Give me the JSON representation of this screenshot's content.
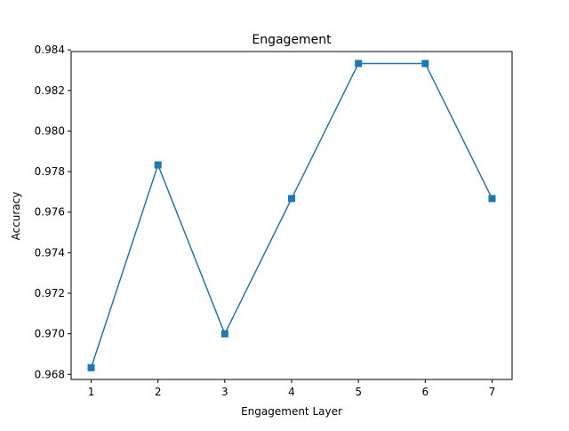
{
  "chart_data": {
    "type": "line",
    "title": "Engagement",
    "xlabel": "Engagement Layer",
    "ylabel": "Accuracy",
    "x": [
      1,
      2,
      3,
      4,
      5,
      6,
      7
    ],
    "series": [
      {
        "values": [
          0.96833,
          0.97833,
          0.97,
          0.97667,
          0.98333,
          0.98333,
          0.97667
        ],
        "color": "#1f77b4",
        "marker": "square"
      }
    ],
    "xticks": [
      "1",
      "2",
      "3",
      "4",
      "5",
      "6",
      "7"
    ],
    "yticks": [
      "0.968",
      "0.970",
      "0.972",
      "0.974",
      "0.976",
      "0.978",
      "0.980",
      "0.982",
      "0.984"
    ],
    "xlim": [
      0.7,
      7.3
    ],
    "ylim": [
      0.96775,
      0.98392
    ],
    "grid": false,
    "legend": false
  }
}
